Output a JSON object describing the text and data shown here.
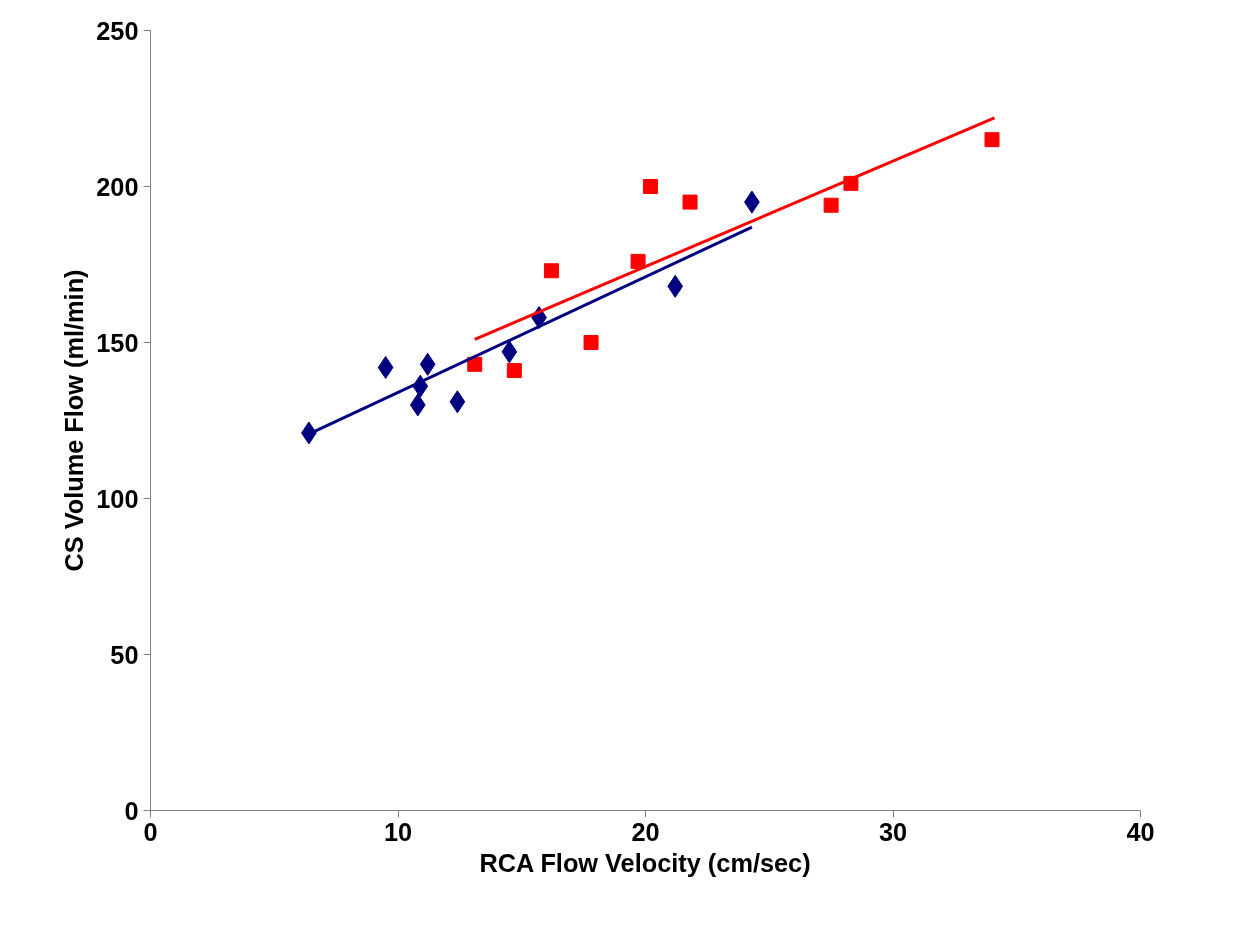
{
  "chart_data": {
    "type": "scatter",
    "xlabel": "RCA Flow Velocity (cm/sec)",
    "ylabel": "CS Volume Flow (ml/min)",
    "xlim": [
      0,
      40
    ],
    "ylim": [
      0,
      250
    ],
    "xticks": [
      0,
      10,
      20,
      30,
      40
    ],
    "yticks": [
      0,
      50,
      100,
      150,
      200,
      250
    ],
    "grid": false,
    "series": [
      {
        "marker": "diamond",
        "color": "#000080",
        "x": [
          6.4,
          9.5,
          10.8,
          10.9,
          11.2,
          12.4,
          14.5,
          15.7,
          21.2,
          24.3
        ],
        "values": [
          121,
          142,
          130,
          136,
          143,
          131,
          147,
          158,
          168,
          195
        ]
      },
      {
        "marker": "square",
        "color": "#ff0000",
        "x": [
          13.1,
          14.7,
          16.2,
          17.8,
          19.7,
          20.2,
          21.8,
          27.5,
          28.3,
          34.0
        ],
        "values": [
          143,
          141,
          173,
          150,
          176,
          200,
          195,
          194,
          201,
          215
        ]
      },
      {
        "type": "line",
        "color": "#000080",
        "x": [
          6.5,
          24.3
        ],
        "values": [
          121,
          187
        ]
      },
      {
        "type": "line",
        "color": "#ff0000",
        "x": [
          13.1,
          34.1
        ],
        "values": [
          151,
          222
        ]
      }
    ]
  }
}
